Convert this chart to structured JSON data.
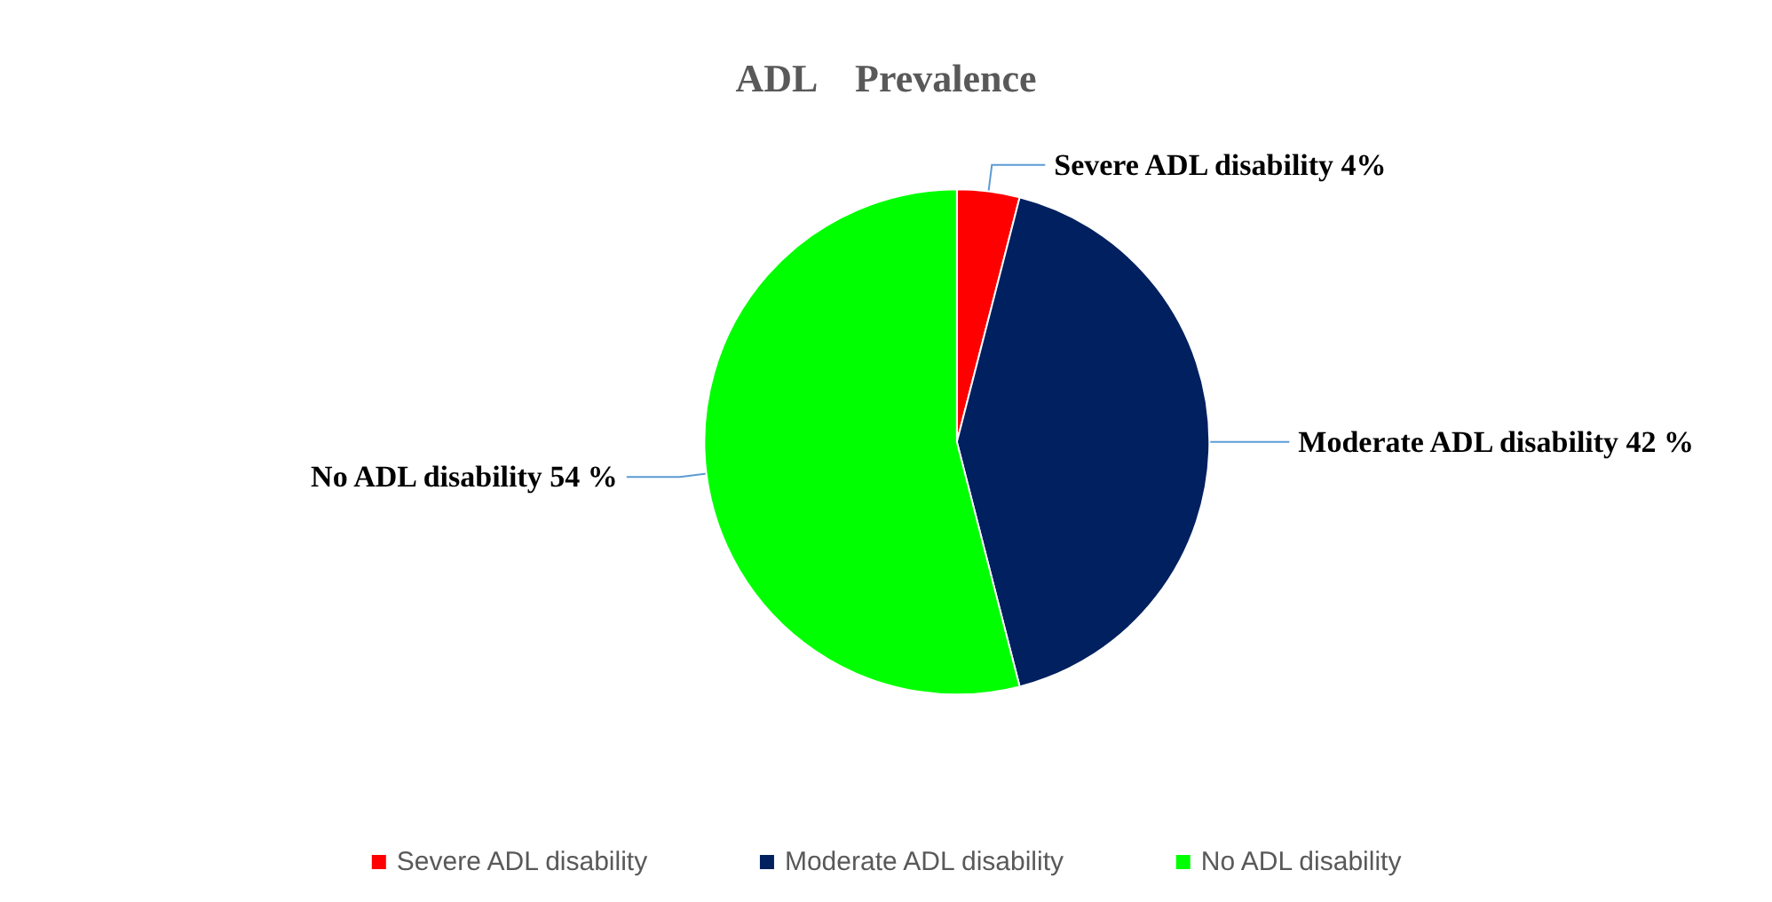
{
  "chart_data": {
    "type": "pie",
    "title": "ADL    Prevalence",
    "categories": [
      "Severe ADL disability",
      "Moderate ADL disability",
      "No ADL disability"
    ],
    "values": [
      4,
      42,
      54
    ],
    "value_labels": [
      "Severe ADL disability 4%",
      "Moderate ADL disability 42 %",
      "No ADL disability 54 %"
    ],
    "colors": [
      "#ff0000",
      "#002060",
      "#00ff00"
    ],
    "legend": "bottom"
  }
}
